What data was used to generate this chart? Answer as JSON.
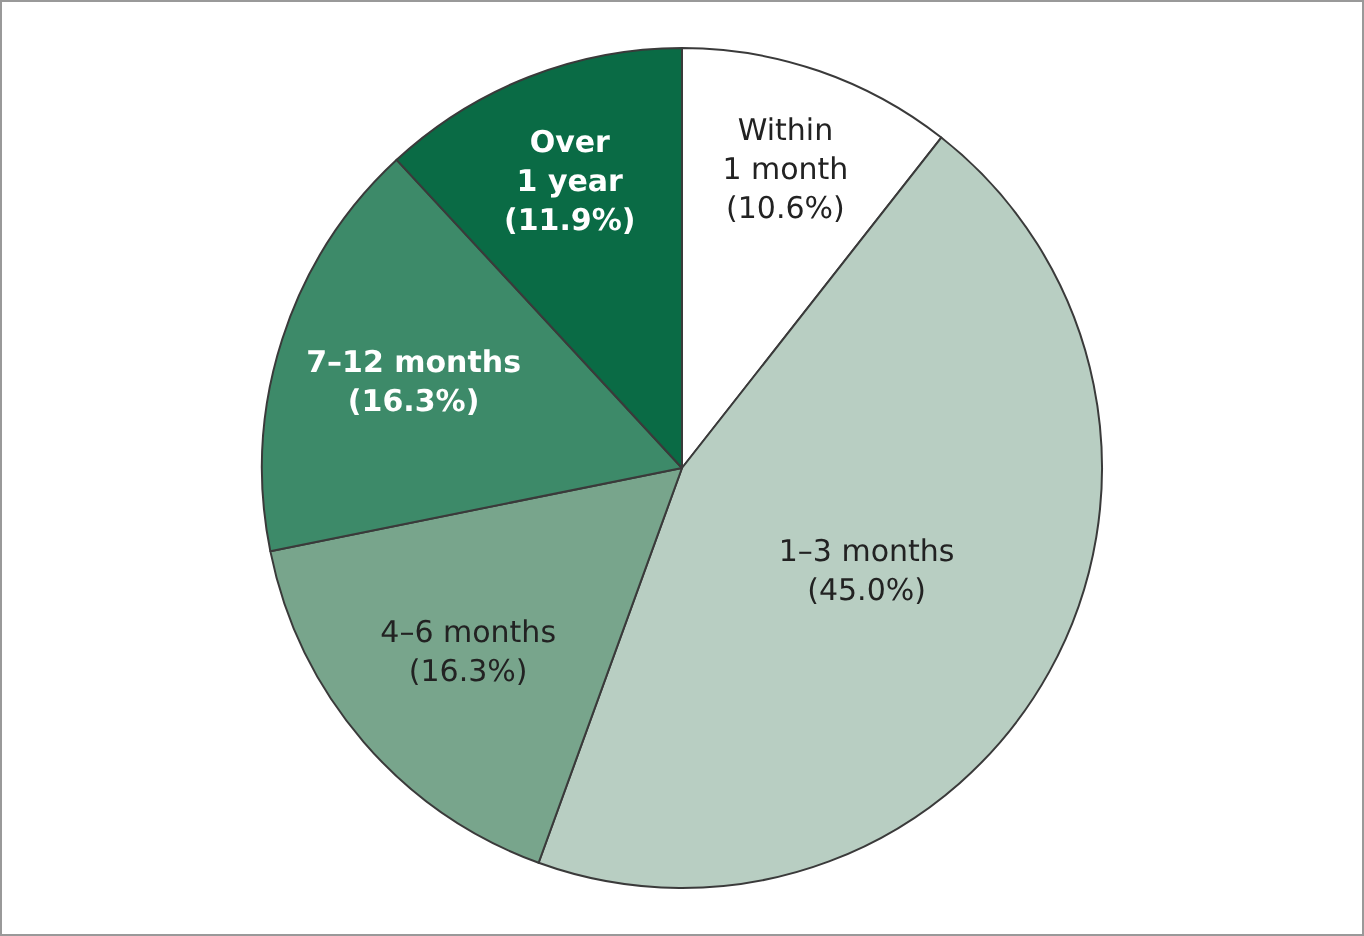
{
  "chart_data": {
    "type": "pie",
    "categories": [
      "Within 1 month",
      "1–3 months",
      "4–6 months",
      "7–12 months",
      "Over 1 year"
    ],
    "values": [
      10.6,
      45.0,
      16.3,
      16.3,
      11.9
    ],
    "value_labels": [
      "(10.6%)",
      "(45.0%)",
      "(16.3%)",
      "(16.3%)",
      "(11.9%)"
    ],
    "colors": [
      "#ffffff",
      "#b8cec2",
      "#78a58c",
      "#3d8a69",
      "#0a6b45"
    ],
    "legend": false
  }
}
